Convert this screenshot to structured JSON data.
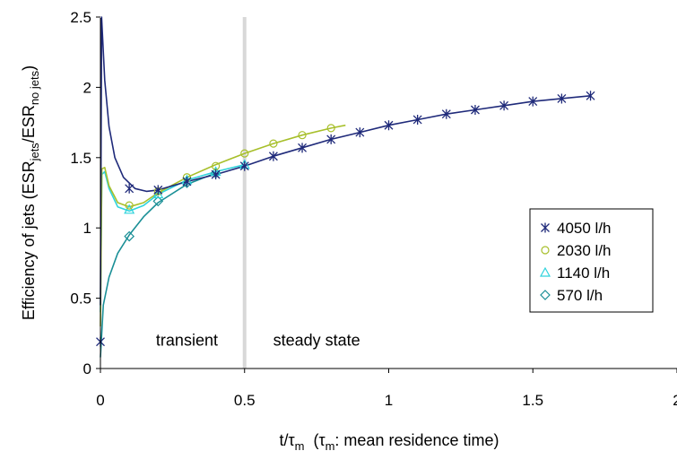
{
  "chart_data": {
    "type": "line",
    "xlabel": {
      "pre": "t/τ",
      "pre_sub": "m",
      "mid": "  (τ",
      "mid_sub": "m",
      "post": ": mean residence time)"
    },
    "ylabel": {
      "pre": "Efficiency of jets (ESR",
      "sub1": "jets",
      "mid": "/ESR",
      "sub2": "no jets",
      "post": ")"
    },
    "xlim": [
      0,
      2
    ],
    "ylim": [
      0,
      2.5
    ],
    "xticks": [
      "0",
      "0.5",
      "1",
      "1.5",
      "2"
    ],
    "yticks": [
      "0",
      "0.5",
      "1",
      "1.5",
      "2",
      "2.5"
    ],
    "grid": false,
    "legend_position": "right-middle",
    "divider_x": 0.5,
    "divider_color": "#d8d8d8",
    "annotations": [
      {
        "text": "transient",
        "x": 0.3,
        "y": 0.2
      },
      {
        "text": "steady state",
        "x": 0.75,
        "y": 0.2
      }
    ],
    "series": [
      {
        "name": "4050 l/h",
        "color": "#1f2a7a",
        "marker": "asterisk",
        "markers": [
          [
            0.0,
            0.19
          ],
          [
            0.1,
            1.28
          ],
          [
            0.2,
            1.27
          ],
          [
            0.3,
            1.33
          ],
          [
            0.4,
            1.38
          ],
          [
            0.5,
            1.44
          ],
          [
            0.6,
            1.51
          ],
          [
            0.7,
            1.57
          ],
          [
            0.8,
            1.63
          ],
          [
            0.9,
            1.68
          ],
          [
            1.0,
            1.73
          ],
          [
            1.1,
            1.77
          ],
          [
            1.2,
            1.81
          ],
          [
            1.3,
            1.84
          ],
          [
            1.4,
            1.87
          ],
          [
            1.5,
            1.9
          ],
          [
            1.6,
            1.92
          ],
          [
            1.7,
            1.94
          ]
        ],
        "curve": [
          [
            0.0,
            0.45
          ],
          [
            0.004,
            2.5
          ],
          [
            0.015,
            2.05
          ],
          [
            0.03,
            1.72
          ],
          [
            0.05,
            1.5
          ],
          [
            0.08,
            1.36
          ],
          [
            0.12,
            1.28
          ],
          [
            0.16,
            1.26
          ],
          [
            0.2,
            1.27
          ],
          [
            0.3,
            1.33
          ],
          [
            0.4,
            1.38
          ],
          [
            0.5,
            1.44
          ],
          [
            0.6,
            1.51
          ],
          [
            0.7,
            1.57
          ],
          [
            0.8,
            1.63
          ],
          [
            0.9,
            1.68
          ],
          [
            1.0,
            1.73
          ],
          [
            1.1,
            1.77
          ],
          [
            1.2,
            1.81
          ],
          [
            1.3,
            1.84
          ],
          [
            1.4,
            1.87
          ],
          [
            1.5,
            1.9
          ],
          [
            1.6,
            1.92
          ],
          [
            1.7,
            1.94
          ]
        ]
      },
      {
        "name": "2030 l/h",
        "color": "#a7bf2a",
        "marker": "circle",
        "markers": [
          [
            0.1,
            1.16
          ],
          [
            0.2,
            1.26
          ],
          [
            0.3,
            1.36
          ],
          [
            0.4,
            1.44
          ],
          [
            0.5,
            1.53
          ],
          [
            0.6,
            1.6
          ],
          [
            0.7,
            1.66
          ],
          [
            0.8,
            1.71
          ]
        ],
        "curve": [
          [
            0.0,
            0.3
          ],
          [
            0.005,
            1.42
          ],
          [
            0.015,
            1.43
          ],
          [
            0.03,
            1.3
          ],
          [
            0.06,
            1.18
          ],
          [
            0.1,
            1.15
          ],
          [
            0.15,
            1.18
          ],
          [
            0.2,
            1.25
          ],
          [
            0.3,
            1.36
          ],
          [
            0.4,
            1.45
          ],
          [
            0.5,
            1.53
          ],
          [
            0.6,
            1.6
          ],
          [
            0.7,
            1.66
          ],
          [
            0.8,
            1.71
          ],
          [
            0.85,
            1.73
          ]
        ]
      },
      {
        "name": "1140 l/h",
        "color": "#2fd3dc",
        "marker": "triangle",
        "markers": [
          [
            0.1,
            1.13
          ],
          [
            0.2,
            1.24
          ],
          [
            0.3,
            1.34
          ],
          [
            0.4,
            1.4
          ],
          [
            0.5,
            1.45
          ]
        ],
        "curve": [
          [
            0.0,
            0.4
          ],
          [
            0.005,
            1.38
          ],
          [
            0.015,
            1.4
          ],
          [
            0.03,
            1.28
          ],
          [
            0.06,
            1.15
          ],
          [
            0.1,
            1.12
          ],
          [
            0.15,
            1.16
          ],
          [
            0.2,
            1.24
          ],
          [
            0.3,
            1.34
          ],
          [
            0.4,
            1.4
          ],
          [
            0.5,
            1.45
          ]
        ]
      },
      {
        "name": "570 l/h",
        "color": "#1a8f96",
        "marker": "diamond",
        "markers": [
          [
            0.1,
            0.94
          ],
          [
            0.2,
            1.19
          ],
          [
            0.3,
            1.32
          ],
          [
            0.4,
            1.39
          ]
        ],
        "curve": [
          [
            0.0,
            0.08
          ],
          [
            0.01,
            0.45
          ],
          [
            0.03,
            0.65
          ],
          [
            0.06,
            0.82
          ],
          [
            0.1,
            0.95
          ],
          [
            0.15,
            1.08
          ],
          [
            0.2,
            1.18
          ],
          [
            0.3,
            1.31
          ],
          [
            0.4,
            1.39
          ]
        ]
      }
    ]
  }
}
